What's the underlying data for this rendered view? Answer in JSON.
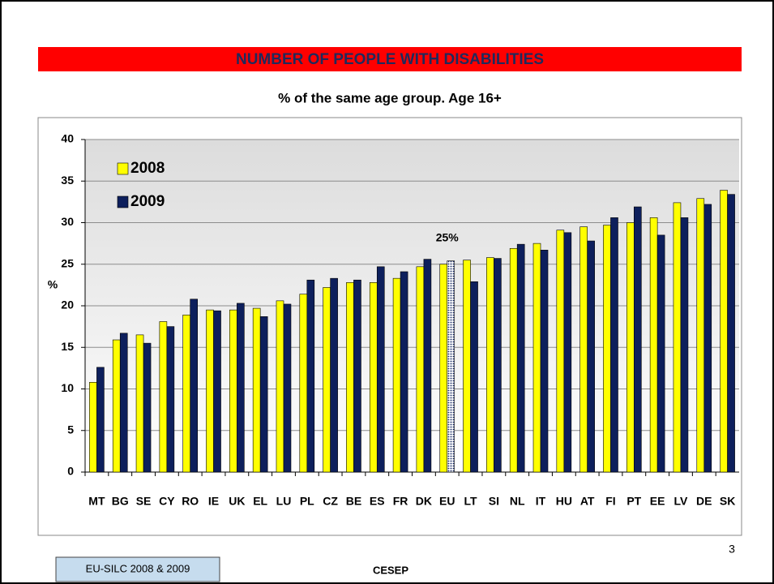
{
  "chart_data": {
    "type": "bar",
    "title": "NUMBER OF PEOPLE WITH DISABILITIES",
    "subtitle": "% of the same age group. Age 16+",
    "y_label": "%",
    "categories": [
      "MT",
      "BG",
      "SE",
      "CY",
      "RO",
      "IE",
      "UK",
      "EL",
      "LU",
      "PL",
      "CZ",
      "BE",
      "ES",
      "FR",
      "DK",
      "EU",
      "LT",
      "SI",
      "NL",
      "IT",
      "HU",
      "AT",
      "FI",
      "PT",
      "EE",
      "LV",
      "DE",
      "SK"
    ],
    "series": [
      {
        "name": "2008",
        "color": "#ffff00",
        "values": [
          10.8,
          15.9,
          16.5,
          18.1,
          18.9,
          19.5,
          19.5,
          19.7,
          20.6,
          21.4,
          22.2,
          22.8,
          22.8,
          23.3,
          24.7,
          25.0,
          25.5,
          25.8,
          26.9,
          27.5,
          29.1,
          29.5,
          29.7,
          30.0,
          30.6,
          32.4,
          32.9,
          33.9
        ]
      },
      {
        "name": "2009",
        "color": "#0d1f5c",
        "values": [
          12.6,
          16.7,
          15.5,
          17.5,
          20.8,
          19.4,
          20.3,
          18.7,
          20.2,
          23.1,
          23.3,
          23.1,
          24.7,
          24.1,
          25.6,
          25.4,
          22.9,
          25.7,
          27.4,
          26.7,
          28.8,
          27.8,
          30.6,
          31.9,
          28.5,
          30.6,
          32.2,
          33.4
        ]
      }
    ],
    "highlight": {
      "series": 1,
      "index": 15,
      "pattern": "dotted"
    },
    "annotation": "25%",
    "ylim": [
      0,
      40
    ],
    "yticks": [
      0,
      5,
      10,
      15,
      20,
      25,
      30,
      35,
      40
    ],
    "grid": true,
    "legend": "top-left"
  },
  "footer": {
    "source": "EU-SILC 2008 & 2009",
    "organization": "CESEP",
    "page_number": "3"
  }
}
